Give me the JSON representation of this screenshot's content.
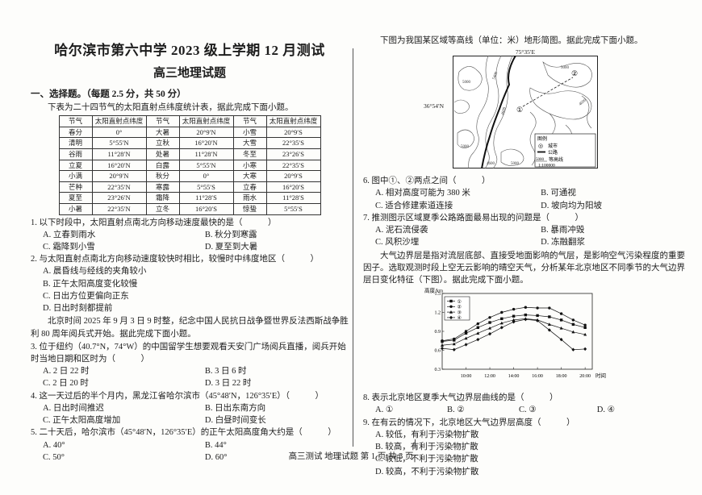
{
  "page": {
    "title": "哈尔滨市第六中学 2023 级上学期 12 月测试",
    "subtitle": "高三地理试题",
    "section_heading": "一、选择题。（每题 2.5 分，共 50 分）",
    "footer": "高三测试  地理试题  第 1 页    共 3 页"
  },
  "left": {
    "table": {
      "columns": [
        "节气",
        "太阳直射点纬度",
        "节气",
        "太阳直射点纬度",
        "节气",
        "太阳直射点纬度"
      ],
      "rows": [
        [
          "春分",
          "0°",
          "大暑",
          "20°9′N",
          "小雪",
          "20°9′S"
        ],
        [
          "清明",
          "5°55′N",
          "立秋",
          "16°20′N",
          "大雪",
          "22°35′S"
        ],
        [
          "谷雨",
          "11°28′N",
          "处暑",
          "11°28′N",
          "冬至",
          "23°26′S"
        ],
        [
          "立夏",
          "16°20′N",
          "白露",
          "5°55′N",
          "小寒",
          "22°35′S"
        ],
        [
          "小满",
          "20°9′N",
          "秋分",
          "0°",
          "大寒",
          "20°9′S"
        ],
        [
          "芒种",
          "22°35′N",
          "寒露",
          "5°55′S",
          "立春",
          "16°20′S"
        ],
        [
          "夏至",
          "23°26′N",
          "霜降",
          "11°28′S",
          "雨水",
          "11°28′S"
        ],
        [
          "小暑",
          "22°35′N",
          "立冬",
          "16°20′S",
          "惊蛰",
          "5°55′S"
        ]
      ]
    },
    "blocks": [
      {
        "type": "text",
        "style": "intro",
        "text": "下表为二十四节气的太阳直射点纬度统计表，据此完成下面小题。"
      },
      {
        "type": "table"
      },
      {
        "type": "question",
        "number": "1.",
        "stem": "以下时段中，太阳直射点南北方向移动速度最快的是（　　　）",
        "per_row": 2,
        "options": [
          "A. 立春到雨水",
          "B. 秋分到寒露",
          "C. 霜降到小雪",
          "D. 夏至到大暑"
        ]
      },
      {
        "type": "question",
        "number": "2.",
        "stem": "与太阳直射点南北方向移动速度较快时相比，较慢时中纬度地区（　　　）",
        "per_row": 1,
        "options": [
          "A. 晨昏线与经线的夹角较小",
          "B. 正午太阳高度变化较慢",
          "C. 日出方位更偏向正东",
          "D. 日出时刻都提前"
        ]
      },
      {
        "type": "text",
        "style": "passage",
        "text": "北京时间 2025 年 9 月 3 日 9 时整，纪念中国人民抗日战争暨世界反法西斯战争胜利 80 周年阅兵式开始。据此完成下面小题。"
      },
      {
        "type": "question",
        "number": "3.",
        "stem": "位于纽约（40.7°N，74°W）的中国留学生想要观看天安门广场阅兵直播，阅兵开始时当地日期和区时为（　　　）",
        "per_row": 2,
        "options": [
          "A. 2 日 22 时",
          "B. 3 日 6 时",
          "C. 2 日 20 时",
          "D. 3 日 22 时"
        ]
      },
      {
        "type": "question",
        "number": "4.",
        "stem": "这一天过后的半个月内，黑龙江省哈尔滨市（45°48′N，126°35′E）（　　　）",
        "per_row": 2,
        "options": [
          "A. 日出时间推迟",
          "B. 日出东南方向",
          "C. 正午太阳高度增加",
          "D. 白昼时间变长"
        ]
      },
      {
        "type": "question",
        "number": "5.",
        "stem": "二十天后，哈尔滨市（45°48′N，126°35′E）的正午太阳高度角大约是（　　　）",
        "per_row": 2,
        "options": [
          "A. 40°",
          "B. 44°",
          "C. 50°",
          "D. 60°"
        ]
      }
    ]
  },
  "right": {
    "map": {
      "lon_label": "75°35′E",
      "lat_label": "36°54′N",
      "point_labels": [
        "①",
        "②"
      ],
      "contour_labels": [
        "5000",
        "5400",
        "4600",
        "5000",
        "4600",
        "5000",
        "5000",
        "4600",
        "5000"
      ],
      "legend": {
        "title": "图例",
        "city_symbol": "◎",
        "city_label": "城市",
        "road_label": "公路",
        "contour_value": "5000",
        "contour_label": "等高线",
        "scale_label": "1:100000"
      }
    },
    "blocks": [
      {
        "type": "text",
        "style": "intro",
        "text": "下图为我国某区域等高线（单位：米）地形简图。据此完成下面小题。"
      },
      {
        "type": "figure",
        "id": "map-figure"
      },
      {
        "type": "question",
        "number": "6.",
        "stem": "图中①、②两点之间（　　　）",
        "per_row": 2,
        "options": [
          "A. 相对高度可能为 380 米",
          "B. 可通视",
          "C. 适合修建索道连接",
          "D. 坡向均为阳坡"
        ]
      },
      {
        "type": "question",
        "number": "7.",
        "stem": "推测图示区域夏季公路路面最易出现的问题是（　　　）",
        "per_row": 2,
        "options": [
          "A. 泥石流侵袭",
          "B. 暴雨冲毁",
          "C. 风积沙埋",
          "D. 冻融翻浆"
        ]
      },
      {
        "type": "text",
        "style": "passage",
        "text": "大气边界层是指对流层底部、直接受地面影响的气层，是影响空气污染程度的重要因子。选取观测时段上空无云影响的晴空天气，分析某年北京地区不同季节的大气边界层日变化特征（下图）。据此完成下面小题。"
      },
      {
        "type": "figure",
        "id": "chart-figure"
      },
      {
        "type": "question",
        "number": "8.",
        "stem": "表示北京地区夏季大气边界层曲线的是（　　　）",
        "per_row": 4,
        "options": [
          "A. ①",
          "B. ②",
          "C. ③",
          "D. ④"
        ]
      },
      {
        "type": "question",
        "number": "9.",
        "stem": "在有云的情况下，北京地区大气边界层高度（　　　）",
        "per_row": 1,
        "options": [
          "A. 较低，有利于污染物扩散",
          "B. 较高，有利于污染物扩散",
          "C. 较低，不利于污染物扩散",
          "D. 较高，不利于污染物扩散"
        ]
      }
    ]
  },
  "chart_data": {
    "type": "line",
    "title": "",
    "ylabel": "高度/km",
    "xlabel": "时间",
    "ylim": [
      0.3,
      1.5
    ],
    "yticks": [
      0.3,
      0.6,
      0.9,
      1.2,
      1.5
    ],
    "xlim": [
      8,
      20.6
    ],
    "xtick_hours": [
      10,
      12,
      14,
      16,
      18,
      20
    ],
    "xtick_labels": [
      "10:00",
      "12:00",
      "14:00",
      "16:00",
      "18:00",
      "20:00"
    ],
    "x_hours": [
      8,
      9,
      10,
      11,
      12,
      13,
      14,
      15,
      16,
      17,
      18,
      19,
      20
    ],
    "legend_position": "top-left",
    "grid": false,
    "series": [
      {
        "name": "①",
        "marker": "square",
        "values": [
          0.74,
          0.76,
          0.87,
          0.96,
          1.04,
          1.1,
          1.14,
          1.16,
          1.15,
          1.13,
          1.08,
          1.01,
          0.96
        ]
      },
      {
        "name": "②",
        "marker": "circle",
        "values": [
          0.75,
          0.78,
          0.9,
          1.02,
          1.12,
          1.2,
          1.25,
          1.28,
          1.27,
          1.27,
          1.18,
          1.08,
          1.0
        ]
      },
      {
        "name": "③",
        "marker": "triangle",
        "values": [
          0.68,
          0.7,
          0.79,
          0.87,
          0.95,
          1.03,
          1.08,
          1.1,
          1.08,
          1.01,
          0.95,
          0.89,
          0.85
        ]
      },
      {
        "name": "④",
        "marker": "diamond",
        "values": [
          0.63,
          0.61,
          0.69,
          0.77,
          0.86,
          0.96,
          1.05,
          1.09,
          1.07,
          0.92,
          0.77,
          0.61,
          0.62
        ]
      }
    ]
  }
}
